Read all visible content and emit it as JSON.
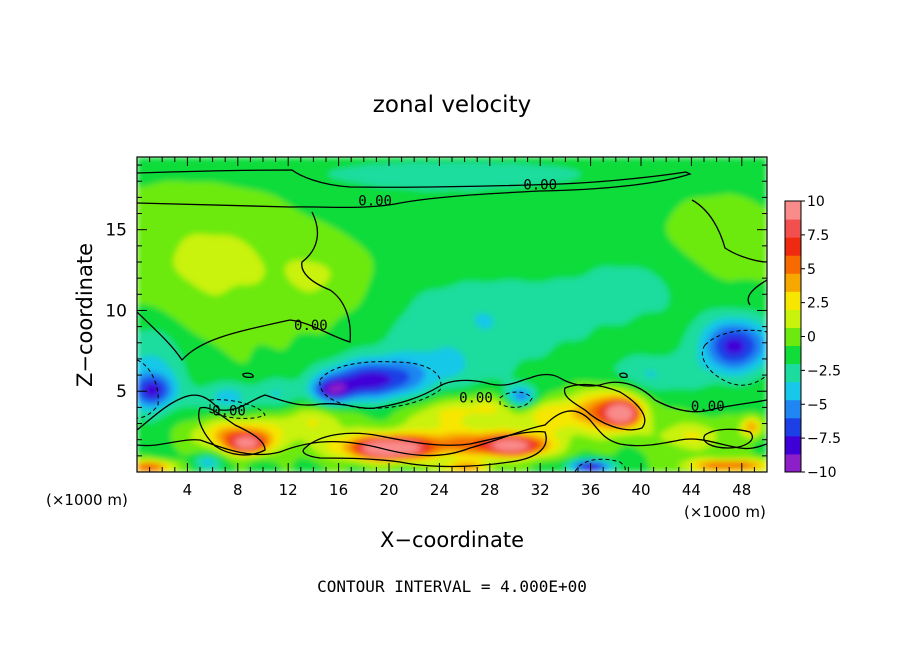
{
  "chart_data": {
    "type": "heatmap",
    "title": "zonal velocity",
    "xlabel": "X−coordinate",
    "ylabel": "Z−coordinate",
    "x_unit_left": "(×1000 m)",
    "x_unit_right": "(×1000 m)",
    "xlim": [
      0,
      50
    ],
    "ylim": [
      0,
      19.5
    ],
    "x_ticks": [
      4,
      8,
      12,
      16,
      20,
      24,
      28,
      32,
      36,
      40,
      44,
      48
    ],
    "x_tick_labels": [
      "4",
      "8",
      "12",
      "16",
      "20",
      "24",
      "28",
      "32",
      "36",
      "40",
      "44",
      "48"
    ],
    "y_ticks": [
      5,
      10,
      15
    ],
    "y_tick_labels": [
      "5",
      "10",
      "15"
    ],
    "footer": "CONTOUR INTERVAL = 4.000E+00",
    "colorbar": {
      "range": [
        -10,
        10
      ],
      "levels": [
        -10,
        -7.5,
        -5,
        -2.5,
        0,
        2.5,
        5,
        7.5,
        10
      ],
      "labels": [
        "−10",
        "−7.5",
        "−5",
        "−2.5",
        "0",
        "2.5",
        "5",
        "7.5",
        "10"
      ],
      "colors": [
        "#8c1fc8",
        "#3f00d8",
        "#1d3fe6",
        "#1f86f2",
        "#18c8e8",
        "#1bdc9e",
        "#10dc3a",
        "#6cea10",
        "#c9f20c",
        "#f7e600",
        "#f7a800",
        "#f76a00",
        "#ee2a10",
        "#f2504e",
        "#f98b8b"
      ]
    },
    "contour_labels": [
      {
        "text": "0.00",
        "x": 32.0,
        "y": 17.8
      },
      {
        "text": "0.00",
        "x": 18.9,
        "y": 16.8
      },
      {
        "text": "0.00",
        "x": 13.8,
        "y": 9.1
      },
      {
        "text": "0.00",
        "x": 7.3,
        "y": 3.8
      },
      {
        "text": "0.00",
        "x": 26.9,
        "y": 4.6
      },
      {
        "text": "0.00",
        "x": 45.3,
        "y": 4.1
      }
    ],
    "blobs": [
      {
        "x": 25,
        "y": 18.5,
        "rx": 16,
        "ry": 1.0,
        "v": -1.3
      },
      {
        "x": 24,
        "y": 16.5,
        "rx": 12,
        "ry": 2.5,
        "v": -0.7
      },
      {
        "x": 6,
        "y": 13,
        "rx": 8,
        "ry": 4.5,
        "v": 2.0
      },
      {
        "x": 15,
        "y": 12,
        "rx": 3.5,
        "ry": 2.5,
        "v": 1.3
      },
      {
        "x": 46,
        "y": 14,
        "rx": 5,
        "ry": 3,
        "v": 1.2
      },
      {
        "x": 28,
        "y": 9.5,
        "rx": 8,
        "ry": 2.5,
        "v": -2.3
      },
      {
        "x": 40,
        "y": 11.5,
        "rx": 6,
        "ry": 2.5,
        "v": -1.4
      },
      {
        "x": 1,
        "y": 6.5,
        "rx": 3,
        "ry": 3,
        "v": -2.8
      },
      {
        "x": 1.3,
        "y": 5.0,
        "rx": 1.6,
        "ry": 1.0,
        "v": -5.0
      },
      {
        "x": 18.5,
        "y": 5.6,
        "rx": 3.8,
        "ry": 1.2,
        "v": -6.2
      },
      {
        "x": 15.5,
        "y": 5.0,
        "rx": 1.6,
        "ry": 0.8,
        "v": -5.5
      },
      {
        "x": 30.5,
        "y": 4.6,
        "rx": 1.3,
        "ry": 0.7,
        "v": -5.2
      },
      {
        "x": 47.5,
        "y": 7.8,
        "rx": 2.8,
        "ry": 1.7,
        "v": -6.8
      },
      {
        "x": 7,
        "y": 4.6,
        "rx": 2.2,
        "ry": 1.0,
        "v": -2.8
      },
      {
        "x": 11,
        "y": 4.8,
        "rx": 2,
        "ry": 1.0,
        "v": -2.2
      },
      {
        "x": 23,
        "y": 6.5,
        "rx": 6,
        "ry": 1.5,
        "v": -2.2
      },
      {
        "x": 41,
        "y": 6.0,
        "rx": 4,
        "ry": 1.2,
        "v": -2.4
      },
      {
        "x": 8,
        "y": 2.3,
        "rx": 3.5,
        "ry": 1.0,
        "v": 5.5
      },
      {
        "x": 8.8,
        "y": 1.7,
        "rx": 1.5,
        "ry": 0.6,
        "v": 8.0
      },
      {
        "x": 20,
        "y": 1.6,
        "rx": 5,
        "ry": 0.9,
        "v": 6.2
      },
      {
        "x": 20,
        "y": 1.4,
        "rx": 2.5,
        "ry": 0.6,
        "v": 8.5
      },
      {
        "x": 28,
        "y": 1.8,
        "rx": 5,
        "ry": 1.0,
        "v": 5.0
      },
      {
        "x": 30,
        "y": 1.6,
        "rx": 2.5,
        "ry": 0.6,
        "v": 7.5
      },
      {
        "x": 37.5,
        "y": 3.8,
        "rx": 2.8,
        "ry": 1.4,
        "v": 6.5
      },
      {
        "x": 38.5,
        "y": 3.6,
        "rx": 1.2,
        "ry": 0.7,
        "v": 9.0
      },
      {
        "x": 33,
        "y": 3.5,
        "rx": 2.5,
        "ry": 1.0,
        "v": 3.5
      },
      {
        "x": 28,
        "y": 4.0,
        "rx": 3,
        "ry": 0.8,
        "v": 2.8
      },
      {
        "x": 14,
        "y": 3.2,
        "rx": 3,
        "ry": 1.0,
        "v": 2.7
      },
      {
        "x": 24,
        "y": 3.5,
        "rx": 3,
        "ry": 1.0,
        "v": 2.6
      },
      {
        "x": 44,
        "y": 2.2,
        "rx": 3,
        "ry": 1.0,
        "v": 3.0
      },
      {
        "x": 48.8,
        "y": 2.8,
        "rx": 0.8,
        "ry": 0.6,
        "v": 5.5
      },
      {
        "x": 47,
        "y": 0.4,
        "rx": 3.5,
        "ry": 0.4,
        "v": 7.0
      },
      {
        "x": 1,
        "y": 0.3,
        "rx": 2,
        "ry": 0.4,
        "v": 7.0
      },
      {
        "x": 26,
        "y": 0.3,
        "rx": 2,
        "ry": 0.35,
        "v": 5.0
      },
      {
        "x": 36,
        "y": 0.35,
        "rx": 1.8,
        "ry": 0.4,
        "v": -7.0
      },
      {
        "x": 5.5,
        "y": 0.6,
        "rx": 1.2,
        "ry": 0.5,
        "v": -3.0
      }
    ]
  }
}
